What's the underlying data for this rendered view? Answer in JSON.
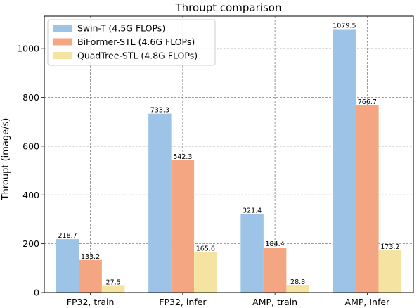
{
  "chart_data": {
    "type": "bar",
    "title": "Throupt comparison",
    "xlabel": "",
    "ylabel": "Throupt (image/s)",
    "categories": [
      "FP32, train",
      "FP32, infer",
      "AMP, train",
      "AMP, Infer"
    ],
    "series": [
      {
        "name": "Swin-T (4.5G FLOPs)",
        "values": [
          218.7,
          733.3,
          321.4,
          1079.5
        ],
        "labels": [
          "218.7",
          "733.3",
          "321.4",
          "1079.5"
        ],
        "color": "#9dc3e6"
      },
      {
        "name": "BiFormer-STL (4.6G FLOPs)",
        "values": [
          133.2,
          542.3,
          184.4,
          766.7
        ],
        "labels": [
          "133.2",
          "542.3",
          "184.4",
          "766.7"
        ],
        "color": "#f4a582"
      },
      {
        "name": "QuadTree-STL (4.8G FLOPs)",
        "values": [
          27.5,
          165.6,
          28.8,
          173.2
        ],
        "labels": [
          "27.5",
          "165.6",
          "28.8",
          "173.2"
        ],
        "color": "#f5e3a1"
      }
    ],
    "ylim": [
      0,
      1133
    ],
    "yticks": [
      0,
      200,
      400,
      600,
      800,
      1000
    ],
    "grid": true,
    "legend_position": "top-left"
  }
}
